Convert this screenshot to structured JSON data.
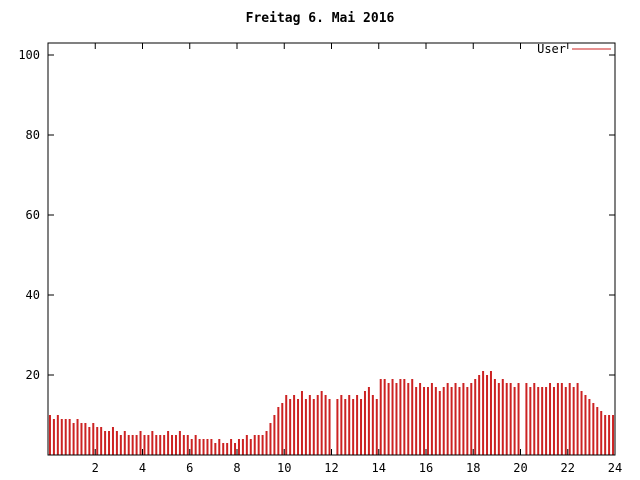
{
  "chart_data": {
    "type": "bar",
    "title": "Freitag 6. Mai 2016",
    "legend_label": "User",
    "series_color": "#cc2222",
    "border_color": "#000000",
    "xlabel": "",
    "ylabel": "",
    "xlim": [
      0,
      24
    ],
    "ylim": [
      0,
      103
    ],
    "xticks": [
      2,
      4,
      6,
      8,
      10,
      12,
      14,
      16,
      18,
      20,
      22,
      24
    ],
    "yticks": [
      20,
      40,
      60,
      80,
      100
    ],
    "sample_interval_minutes": 10,
    "values": [
      10,
      9,
      10,
      9,
      9,
      9,
      8,
      9,
      8,
      8,
      7,
      8,
      7,
      7,
      6,
      6,
      7,
      6,
      5,
      6,
      5,
      5,
      5,
      6,
      5,
      5,
      6,
      5,
      5,
      5,
      6,
      5,
      5,
      6,
      5,
      5,
      4,
      5,
      4,
      4,
      4,
      4,
      3,
      4,
      3,
      3,
      4,
      3,
      4,
      4,
      5,
      4,
      5,
      5,
      5,
      6,
      8,
      10,
      12,
      13,
      15,
      14,
      15,
      14,
      16,
      14,
      15,
      14,
      15,
      16,
      15,
      14,
      0,
      14,
      15,
      14,
      15,
      14,
      15,
      14,
      16,
      17,
      15,
      14,
      19,
      19,
      18,
      19,
      18,
      19,
      19,
      18,
      19,
      17,
      18,
      17,
      17,
      18,
      17,
      16,
      17,
      18,
      17,
      18,
      17,
      18,
      17,
      18,
      19,
      20,
      21,
      20,
      21,
      19,
      18,
      19,
      18,
      18,
      17,
      18,
      0,
      18,
      17,
      18,
      17,
      17,
      17,
      18,
      17,
      18,
      18,
      17,
      18,
      17,
      18,
      16,
      15,
      14,
      13,
      12,
      11,
      10,
      10,
      10
    ]
  }
}
